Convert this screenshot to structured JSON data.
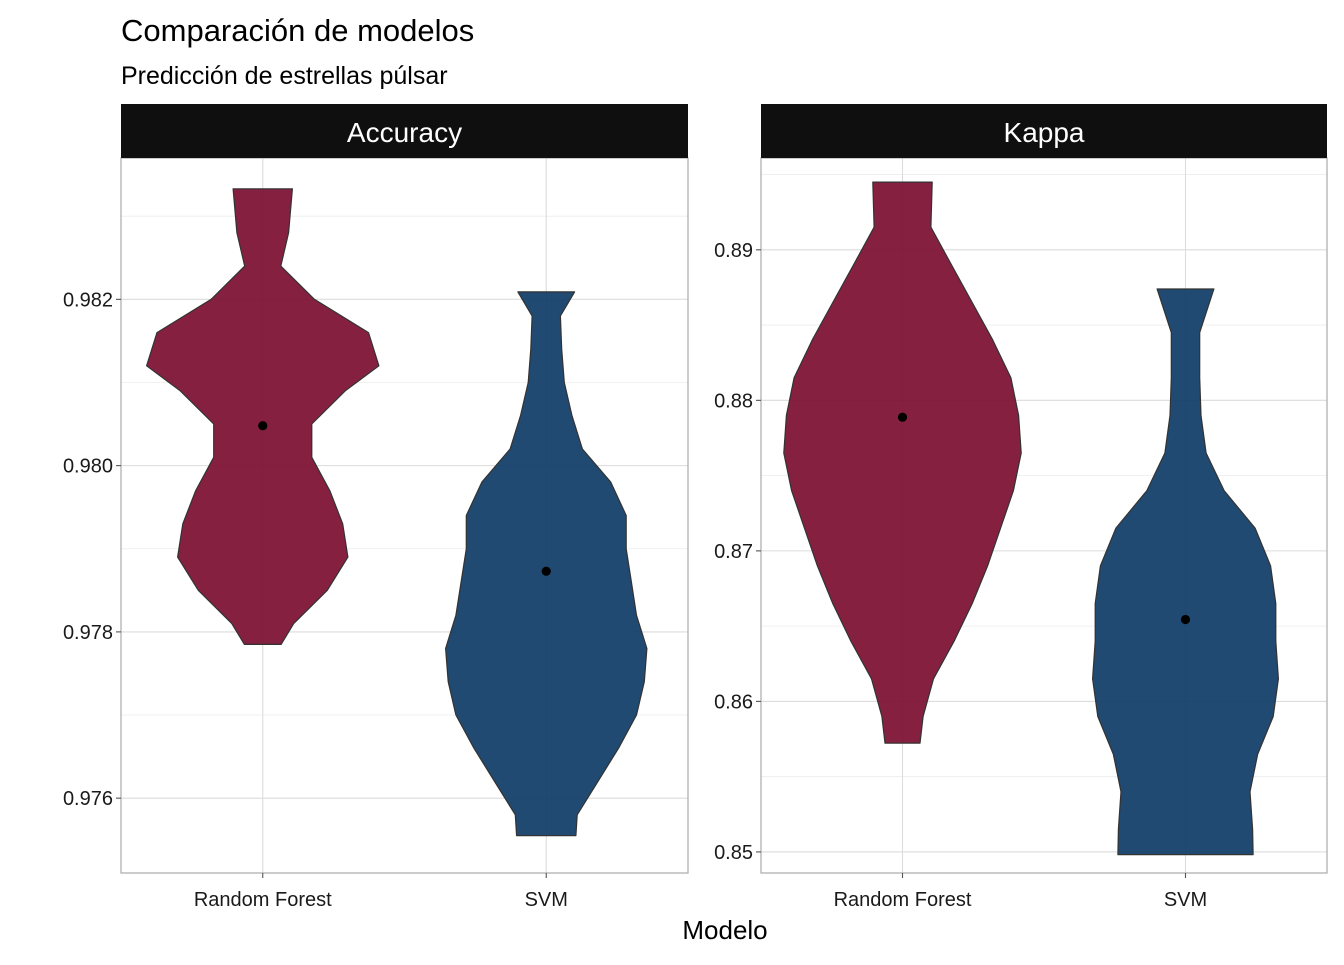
{
  "title": "Comparación de modelos",
  "subtitle": "Predicción de estrellas púlsar",
  "xlabel": "Modelo",
  "chart_data": [
    {
      "type": "violin",
      "facet": "Accuracy",
      "categories": [
        "Random Forest",
        "SVM"
      ],
      "ylim": [
        0.9751,
        0.9837
      ],
      "yticks": [
        0.976,
        0.978,
        0.98,
        0.982
      ],
      "ytick_labels": [
        "0.976",
        "0.978",
        "0.980",
        "0.982"
      ],
      "series": [
        {
          "category": "Random Forest",
          "color": "#7d1235",
          "point": 0.98048,
          "profile": [
            [
              0.97785,
              0.071
            ],
            [
              0.9781,
              0.12
            ],
            [
              0.9785,
              0.25
            ],
            [
              0.9789,
              0.33
            ],
            [
              0.9793,
              0.31
            ],
            [
              0.9797,
              0.26
            ],
            [
              0.9801,
              0.19
            ],
            [
              0.9805,
              0.19
            ],
            [
              0.9809,
              0.32
            ],
            [
              0.9812,
              0.45
            ],
            [
              0.9816,
              0.41
            ],
            [
              0.982,
              0.2
            ],
            [
              0.9824,
              0.07
            ],
            [
              0.9828,
              0.1
            ],
            [
              0.98333,
              0.115
            ]
          ]
        },
        {
          "category": "SVM",
          "color": "#123f68",
          "point": 0.97873,
          "profile": [
            [
              0.97555,
              0.115
            ],
            [
              0.9758,
              0.12
            ],
            [
              0.9762,
              0.2
            ],
            [
              0.9766,
              0.28
            ],
            [
              0.977,
              0.35
            ],
            [
              0.9774,
              0.38
            ],
            [
              0.9778,
              0.39
            ],
            [
              0.9782,
              0.35
            ],
            [
              0.9786,
              0.33
            ],
            [
              0.979,
              0.31
            ],
            [
              0.9794,
              0.31
            ],
            [
              0.9798,
              0.25
            ],
            [
              0.9802,
              0.14
            ],
            [
              0.9806,
              0.1
            ],
            [
              0.981,
              0.07
            ],
            [
              0.9814,
              0.06
            ],
            [
              0.9818,
              0.055
            ],
            [
              0.98209,
              0.11
            ]
          ]
        }
      ]
    },
    {
      "type": "violin",
      "facet": "Kappa",
      "categories": [
        "Random Forest",
        "SVM"
      ],
      "ylim": [
        0.8486,
        0.8961
      ],
      "yticks": [
        0.85,
        0.86,
        0.87,
        0.88,
        0.89
      ],
      "ytick_labels": [
        "0.85",
        "0.86",
        "0.87",
        "0.88",
        "0.89"
      ],
      "series": [
        {
          "category": "Random Forest",
          "color": "#7d1235",
          "point": 0.87888,
          "profile": [
            [
              0.85722,
              0.068
            ],
            [
              0.859,
              0.08
            ],
            [
              0.8615,
              0.12
            ],
            [
              0.864,
              0.2
            ],
            [
              0.8665,
              0.27
            ],
            [
              0.869,
              0.33
            ],
            [
              0.8715,
              0.38
            ],
            [
              0.874,
              0.43
            ],
            [
              0.8765,
              0.46
            ],
            [
              0.879,
              0.45
            ],
            [
              0.8815,
              0.42
            ],
            [
              0.884,
              0.35
            ],
            [
              0.8865,
              0.27
            ],
            [
              0.889,
              0.19
            ],
            [
              0.8915,
              0.11
            ],
            [
              0.8945,
              0.115
            ]
          ]
        },
        {
          "category": "SVM",
          "color": "#123f68",
          "point": 0.86544,
          "profile": [
            [
              0.84982,
              0.262
            ],
            [
              0.8515,
              0.26
            ],
            [
              0.854,
              0.25
            ],
            [
              0.8565,
              0.28
            ],
            [
              0.859,
              0.34
            ],
            [
              0.8615,
              0.36
            ],
            [
              0.864,
              0.35
            ],
            [
              0.8665,
              0.35
            ],
            [
              0.869,
              0.33
            ],
            [
              0.8715,
              0.27
            ],
            [
              0.874,
              0.15
            ],
            [
              0.8765,
              0.08
            ],
            [
              0.879,
              0.06
            ],
            [
              0.8815,
              0.055
            ],
            [
              0.8845,
              0.055
            ],
            [
              0.8874,
              0.11
            ]
          ]
        }
      ]
    }
  ]
}
